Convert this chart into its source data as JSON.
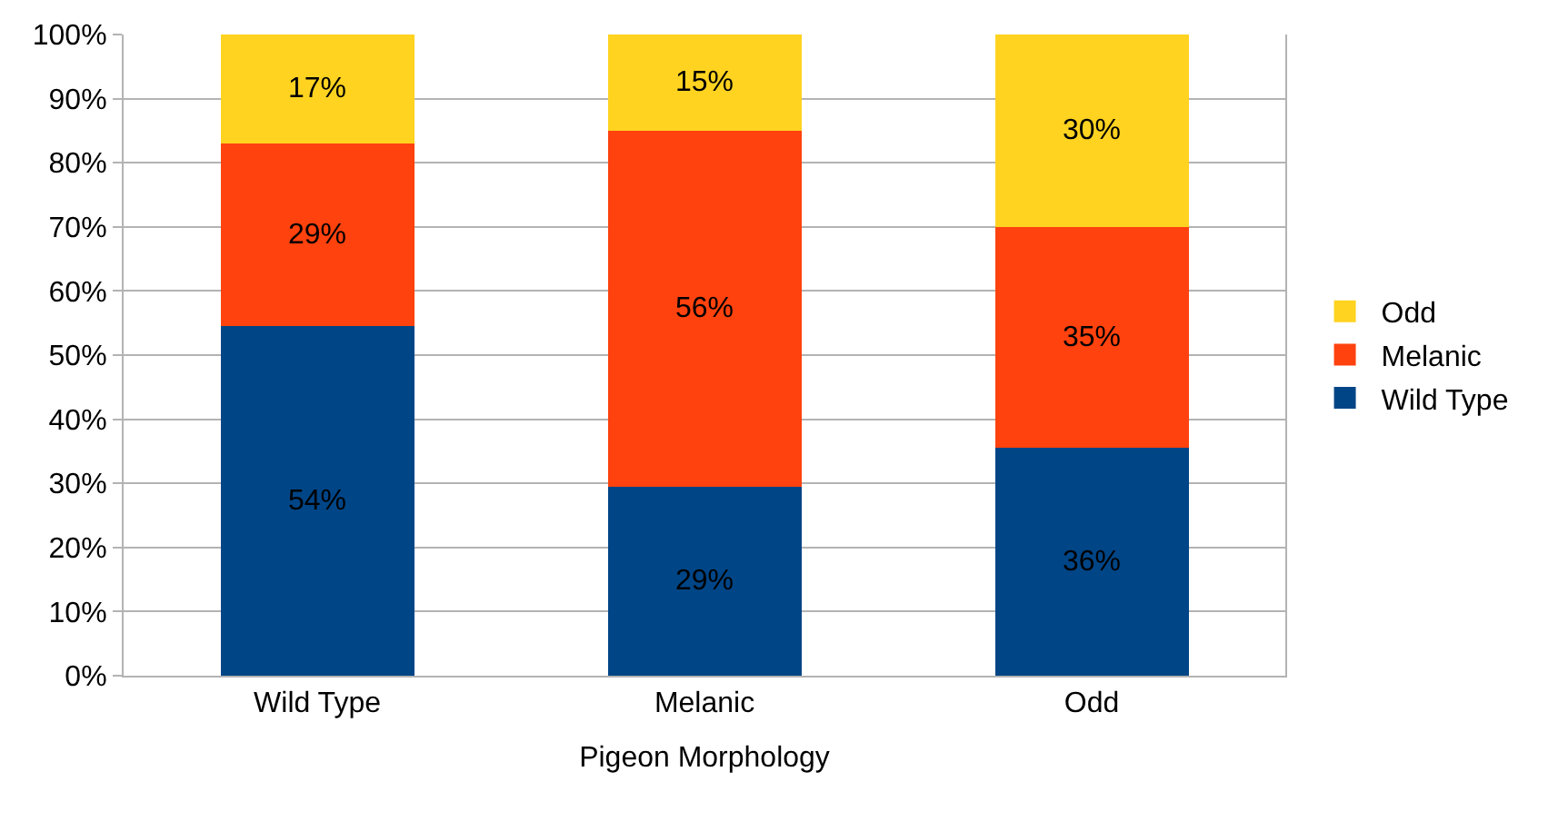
{
  "chart_data": {
    "type": "bar",
    "stacked": true,
    "xlabel": "Pigeon Morphology",
    "categories": [
      "Wild Type",
      "Melanic",
      "Odd"
    ],
    "series": [
      {
        "name": "Wild Type",
        "color": "#004586",
        "values": [
          54.5,
          29.5,
          35.5
        ],
        "value_labels": [
          "54%",
          "29%",
          "36%"
        ]
      },
      {
        "name": "Melanic",
        "color": "#ff420e",
        "values": [
          28.5,
          55.5,
          34.5
        ],
        "value_labels": [
          "29%",
          "56%",
          "35%"
        ]
      },
      {
        "name": "Odd",
        "color": "#ffd320",
        "values": [
          17,
          15,
          30
        ],
        "value_labels": [
          "17%",
          "15%",
          "30%"
        ]
      }
    ],
    "ylim": [
      0,
      100
    ],
    "yticks": [
      {
        "value": 0,
        "label": "0%"
      },
      {
        "value": 10,
        "label": "10%"
      },
      {
        "value": 20,
        "label": "20%"
      },
      {
        "value": 30,
        "label": "30%"
      },
      {
        "value": 40,
        "label": "40%"
      },
      {
        "value": 50,
        "label": "50%"
      },
      {
        "value": 60,
        "label": "60%"
      },
      {
        "value": 70,
        "label": "70%"
      },
      {
        "value": 80,
        "label": "80%"
      },
      {
        "value": 90,
        "label": "90%"
      },
      {
        "value": 100,
        "label": "100%"
      }
    ],
    "grid": "y",
    "legend": "right"
  }
}
